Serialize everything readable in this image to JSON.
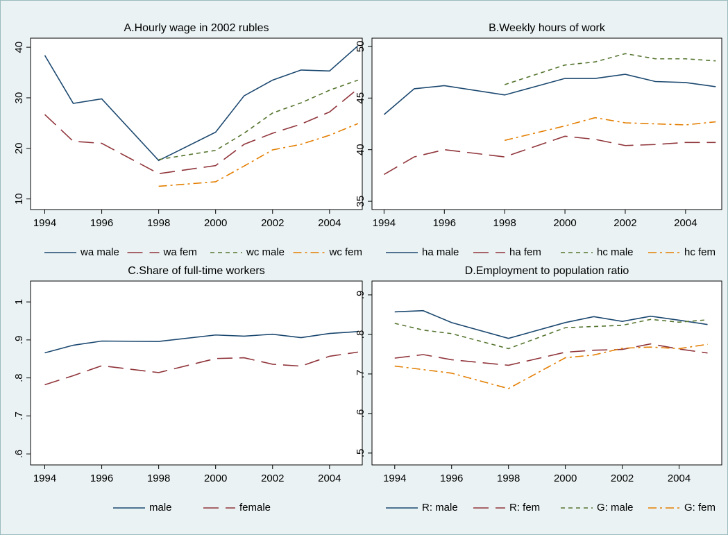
{
  "chart_data": [
    {
      "type": "line",
      "title": "A.Hourly wage in 2002 rubles",
      "x": [
        1994,
        1995,
        1996,
        1998,
        2000,
        2001,
        2002,
        2003,
        2004,
        2005
      ],
      "xlim": [
        1993.5,
        2005.15
      ],
      "xticks": [
        1994,
        1996,
        1998,
        2000,
        2002,
        2004
      ],
      "ylim": [
        7.9,
        41.8
      ],
      "yticks": [
        10,
        20,
        30,
        40
      ],
      "series": [
        {
          "name": "wa male",
          "color": "#1a476f",
          "values": [
            38.4,
            28.9,
            29.8,
            17.6,
            23.2,
            30.4,
            33.5,
            35.5,
            35.3,
            40.3
          ]
        },
        {
          "name": "wa fem",
          "color": "#90353b",
          "values": [
            26.7,
            21.4,
            21.0,
            15.0,
            16.6,
            20.8,
            23.0,
            24.8,
            27.2,
            31.8
          ]
        },
        {
          "name": "wc male",
          "color": "#55752f",
          "values": [
            null,
            null,
            null,
            17.8,
            19.6,
            23.0,
            27.0,
            29.0,
            31.5,
            33.5
          ]
        },
        {
          "name": "wc fem",
          "color": "#e37e00",
          "values": [
            null,
            null,
            null,
            12.5,
            13.4,
            16.5,
            19.7,
            20.8,
            22.6,
            24.9
          ]
        }
      ]
    },
    {
      "type": "line",
      "title": "B.Weekly hours of work",
      "x": [
        1994,
        1995,
        1996,
        1998,
        2000,
        2001,
        2002,
        2003,
        2004,
        2005
      ],
      "xlim": [
        1993.6,
        2005.2
      ],
      "xticks": [
        1994,
        1996,
        1998,
        2000,
        2002,
        2004
      ],
      "ylim": [
        34.2,
        50.8
      ],
      "yticks": [
        35,
        40,
        45,
        50
      ],
      "series": [
        {
          "name": "ha male",
          "color": "#1a476f",
          "values": [
            43.4,
            45.9,
            46.2,
            45.3,
            46.9,
            46.9,
            47.3,
            46.6,
            46.5,
            46.1
          ]
        },
        {
          "name": "ha fem",
          "color": "#90353b",
          "values": [
            37.6,
            39.3,
            40.0,
            39.3,
            41.3,
            41.0,
            40.4,
            40.5,
            40.7,
            40.7
          ]
        },
        {
          "name": "hc male",
          "color": "#55752f",
          "values": [
            null,
            null,
            null,
            46.3,
            48.2,
            48.5,
            49.3,
            48.8,
            48.8,
            48.6
          ]
        },
        {
          "name": "hc fem",
          "color": "#e37e00",
          "values": [
            null,
            null,
            null,
            40.9,
            42.3,
            43.1,
            42.6,
            42.5,
            42.4,
            42.7
          ]
        }
      ]
    },
    {
      "type": "line",
      "title": "C.Share of full-time workers",
      "x": [
        1994,
        1995,
        1996,
        1998,
        2000,
        2001,
        2002,
        2003,
        2004,
        2005
      ],
      "xlim": [
        1993.5,
        2005.15
      ],
      "xticks": [
        1994,
        1996,
        1998,
        2000,
        2002,
        2004
      ],
      "ylim": [
        0.571,
        1.055
      ],
      "yticks": [
        {
          "value": 0.6,
          "label": ".6"
        },
        {
          "value": 0.7,
          "label": ".7"
        },
        {
          "value": 0.8,
          "label": ".8"
        },
        {
          "value": 0.9,
          "label": ".9"
        },
        1
      ],
      "series": [
        {
          "name": "male",
          "color": "#1a476f",
          "values": [
            0.866,
            0.886,
            0.897,
            0.896,
            0.913,
            0.91,
            0.915,
            0.906,
            0.917,
            0.922
          ]
        },
        {
          "name": "female",
          "color": "#90353b",
          "values": [
            0.782,
            0.806,
            0.832,
            0.814,
            0.851,
            0.853,
            0.836,
            0.831,
            0.857,
            0.868
          ]
        }
      ]
    },
    {
      "type": "line",
      "title": "D.Employment to population ratio",
      "x": [
        1994,
        1995,
        1996,
        1998,
        2000,
        2001,
        2002,
        2003,
        2004,
        2005
      ],
      "xlim": [
        1993.2,
        2005.5
      ],
      "xticks": [
        1994,
        1996,
        1998,
        2000,
        2002,
        2004
      ],
      "ylim": [
        0.47,
        0.935
      ],
      "yticks": [
        {
          "value": 0.5,
          "label": ".5"
        },
        {
          "value": 0.6,
          "label": ".6"
        },
        {
          "value": 0.7,
          "label": ".7"
        },
        {
          "value": 0.8,
          "label": ".8"
        },
        {
          "value": 0.9,
          "label": ".9"
        }
      ],
      "series": [
        {
          "name": "R: male",
          "color": "#1a476f",
          "values": [
            0.857,
            0.86,
            0.83,
            0.79,
            0.83,
            0.845,
            0.833,
            0.846,
            0.836,
            0.825
          ]
        },
        {
          "name": "R: fem",
          "color": "#90353b",
          "values": [
            0.74,
            0.749,
            0.736,
            0.722,
            0.755,
            0.76,
            0.762,
            0.776,
            0.763,
            0.753
          ]
        },
        {
          "name": "G: male",
          "color": "#55752f",
          "values": [
            0.828,
            0.811,
            0.802,
            0.764,
            0.817,
            0.82,
            0.823,
            0.838,
            0.831,
            0.837
          ]
        },
        {
          "name": "G: fem",
          "color": "#e37e00",
          "values": [
            0.72,
            0.711,
            0.702,
            0.663,
            0.741,
            0.748,
            0.765,
            0.768,
            0.764,
            0.775
          ]
        }
      ]
    }
  ]
}
